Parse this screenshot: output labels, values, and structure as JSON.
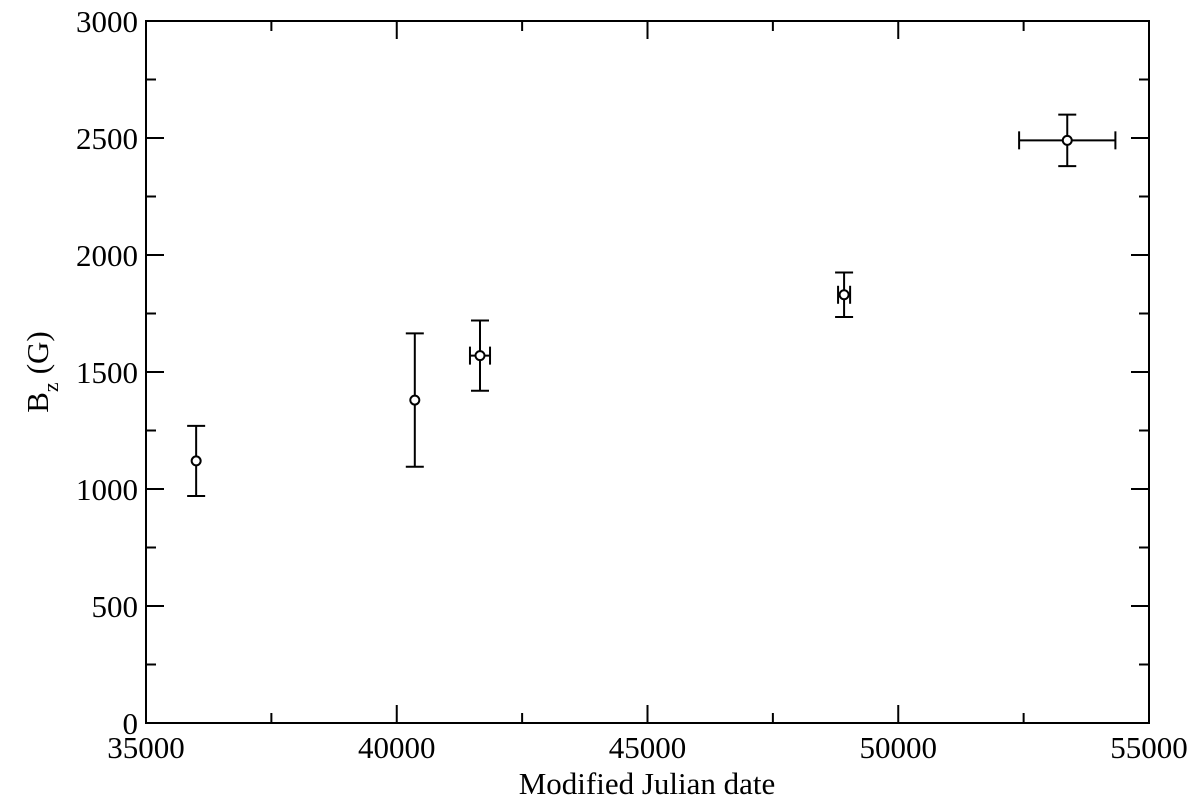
{
  "chart_data": {
    "type": "scatter",
    "xlabel": "Modified Julian date",
    "ylabel": [
      "B",
      "z",
      "(G)"
    ],
    "xlim": [
      35000,
      55000
    ],
    "xticks": [
      35000,
      40000,
      45000,
      50000,
      55000
    ],
    "xminor": [
      37500,
      42500,
      47500,
      52500
    ],
    "ylim": [
      0,
      3000
    ],
    "yticks": [
      0,
      500,
      1000,
      1500,
      2000,
      2500,
      3000
    ],
    "yminor": [
      250,
      750,
      1250,
      1750,
      2250,
      2750
    ],
    "series": [
      {
        "color": "#000000",
        "x": [
          36000,
          40360,
          41660,
          48920,
          53370
        ],
        "values": [
          1120,
          1380,
          1570,
          1830,
          2490
        ],
        "yerr": [
          150,
          285,
          150,
          95,
          110
        ],
        "xerr": [
          null,
          null,
          200,
          120,
          960
        ]
      }
    ]
  }
}
